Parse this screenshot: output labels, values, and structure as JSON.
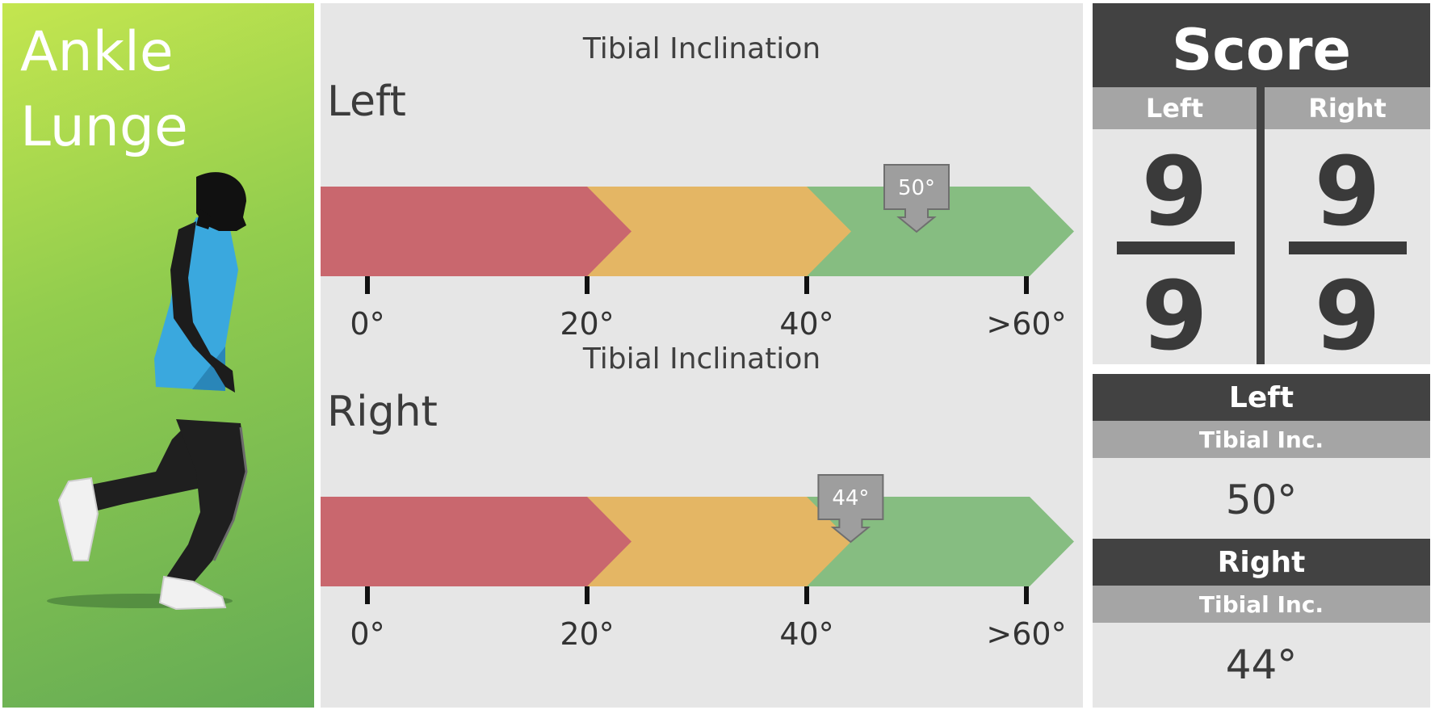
{
  "hero": {
    "title_lines": [
      "Ankle",
      "Lunge"
    ]
  },
  "gauge_left": {
    "caption": "Tibial Inclination",
    "side": "Left",
    "value_deg": 50,
    "marker_label": "50°",
    "ticks": [
      "0°",
      "20°",
      "40°",
      ">60°"
    ],
    "zones": {
      "red": "#c9676e",
      "yellow": "#e4b664",
      "green": "#86bd81"
    }
  },
  "gauge_right": {
    "caption": "Tibial Inclination",
    "side": "Right",
    "value_deg": 44,
    "marker_label": "44°",
    "ticks": [
      "0°",
      "20°",
      "40°",
      ">60°"
    ],
    "zones": {
      "red": "#c9676e",
      "yellow": "#e4b664",
      "green": "#86bd81"
    }
  },
  "score": {
    "title": "Score",
    "left_label": "Left",
    "right_label": "Right",
    "left_numerator": "9",
    "left_denominator": "9",
    "right_numerator": "9",
    "right_denominator": "9"
  },
  "values": {
    "left": {
      "side": "Left",
      "metric": "Tibial Inc.",
      "value": "50°"
    },
    "right": {
      "side": "Right",
      "metric": "Tibial Inc.",
      "value": "44°"
    }
  },
  "colors": {
    "dark": "#424242",
    "medium": "#a5a5a5",
    "panel": "#e6e6e6",
    "marker": "#9e9e9e"
  }
}
